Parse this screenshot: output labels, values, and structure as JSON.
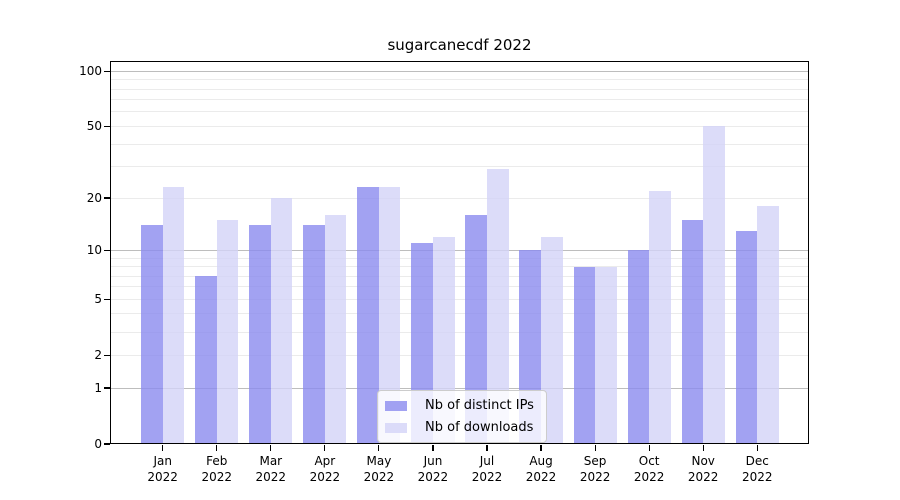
{
  "title": "sugarcanecdf 2022",
  "chart_data": {
    "type": "bar",
    "title": "sugarcanecdf 2022",
    "categories": [
      "Jan 2022",
      "Feb 2022",
      "Mar 2022",
      "Apr 2022",
      "May 2022",
      "Jun 2022",
      "Jul 2022",
      "Aug 2022",
      "Sep 2022",
      "Oct 2022",
      "Nov 2022",
      "Dec 2022"
    ],
    "series": [
      {
        "name": "Nb of distinct IPs",
        "color": "#8b8bef",
        "alpha": 0.8,
        "values": [
          14,
          7,
          14,
          14,
          23,
          11,
          16,
          10,
          8,
          10,
          15,
          13
        ]
      },
      {
        "name": "Nb of downloads",
        "color": "#d3d3f7",
        "alpha": 0.8,
        "values": [
          23,
          15,
          20,
          16,
          23,
          12,
          29,
          12,
          8,
          22,
          50,
          18
        ]
      }
    ],
    "xlabel": "",
    "ylabel": "",
    "yscale": "log10(1+y)",
    "ylim": [
      0,
      115
    ],
    "yticks": [
      0,
      1,
      2,
      5,
      10,
      20,
      50,
      100
    ],
    "grid": {
      "major_values": [
        1,
        10,
        100
      ],
      "minor_values": [
        2,
        3,
        4,
        5,
        6,
        7,
        8,
        9,
        20,
        30,
        40,
        50,
        60,
        70,
        80,
        90
      ],
      "major_color": "#bdbdbd",
      "minor_color": "#ebebeb"
    },
    "legend_position": "lower center",
    "axis_color": "#000000"
  }
}
